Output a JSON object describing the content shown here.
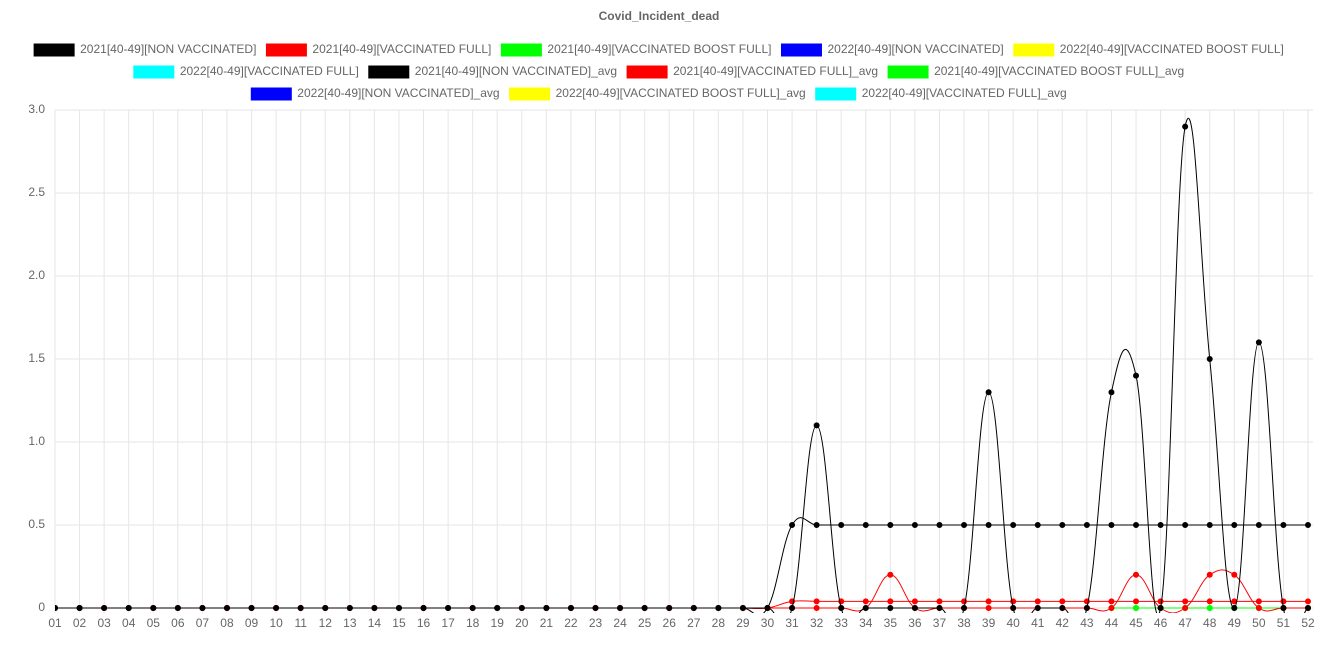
{
  "chart_data": {
    "type": "line",
    "title": "Covid_Incident_dead",
    "categories": [
      "01",
      "02",
      "03",
      "04",
      "05",
      "06",
      "07",
      "08",
      "09",
      "10",
      "11",
      "12",
      "13",
      "14",
      "15",
      "16",
      "17",
      "18",
      "19",
      "20",
      "21",
      "22",
      "23",
      "24",
      "25",
      "26",
      "27",
      "28",
      "29",
      "30",
      "31",
      "32",
      "33",
      "34",
      "35",
      "36",
      "37",
      "38",
      "39",
      "40",
      "41",
      "42",
      "43",
      "44",
      "45",
      "46",
      "47",
      "48",
      "49",
      "50",
      "51",
      "52"
    ],
    "ylim": [
      0,
      3
    ],
    "yticks": [
      0,
      0.5,
      {
        "value": 1,
        "label": "1.0"
      },
      {
        "value": 1.5,
        "label": "1.5"
      },
      {
        "value": 2,
        "label": "2.0"
      },
      {
        "value": 2.5,
        "label": "2.5"
      },
      {
        "value": 3,
        "label": "3.0"
      }
    ],
    "grid": true,
    "legend": "top",
    "series": [
      {
        "name": "2021[40-49][NON VACCINATED]",
        "color": "#000000",
        "values": [
          0,
          0,
          0,
          0,
          0,
          0,
          0,
          0,
          0,
          0,
          0,
          0,
          0,
          0,
          0,
          0,
          0,
          0,
          0,
          0,
          0,
          0,
          0,
          0,
          0,
          0,
          0,
          0,
          0,
          0,
          0,
          1.1,
          0,
          0,
          0,
          0,
          0,
          0,
          1.3,
          0,
          0,
          0,
          0,
          1.3,
          1.4,
          0,
          2.9,
          1.5,
          0,
          1.6,
          0,
          0
        ]
      },
      {
        "name": "2021[40-49][VACCINATED FULL]",
        "color": "#ff0000",
        "values": [
          0,
          0,
          0,
          0,
          0,
          0,
          0,
          0,
          0,
          0,
          0,
          0,
          0,
          0,
          0,
          0,
          0,
          0,
          0,
          0,
          0,
          0,
          0,
          0,
          0,
          0,
          0,
          0,
          0,
          0,
          0,
          0,
          0,
          0,
          0.2,
          0,
          0,
          0,
          0,
          0,
          0,
          0,
          0,
          0,
          0.2,
          0,
          0,
          0.2,
          0.2,
          0,
          0,
          0
        ]
      },
      {
        "name": "2021[40-49][VACCINATED BOOST FULL]",
        "color": "#00ff00",
        "values": [
          null,
          null,
          null,
          null,
          null,
          null,
          null,
          null,
          null,
          null,
          null,
          null,
          null,
          null,
          null,
          null,
          null,
          null,
          null,
          null,
          null,
          null,
          null,
          null,
          null,
          null,
          null,
          null,
          null,
          null,
          null,
          null,
          null,
          null,
          null,
          null,
          null,
          null,
          null,
          null,
          null,
          null,
          null,
          0,
          0,
          0,
          0,
          0,
          0,
          0,
          0,
          0
        ]
      },
      {
        "name": "2022[40-49][NON VACCINATED]",
        "color": "#0000ff",
        "values": [
          null,
          null,
          null,
          null,
          null,
          null,
          null,
          null,
          null,
          null,
          null,
          null,
          null,
          null,
          null,
          null,
          null,
          null,
          null,
          null,
          null,
          null,
          null,
          null,
          null,
          null,
          null,
          null,
          null,
          null,
          null,
          null,
          null,
          null,
          null,
          null,
          null,
          null,
          null,
          null,
          null,
          null,
          null,
          null,
          null,
          null,
          null,
          null,
          null,
          null,
          null,
          null
        ]
      },
      {
        "name": "2022[40-49][VACCINATED BOOST FULL]",
        "color": "#ffff00",
        "values": [
          null,
          null,
          null,
          null,
          null,
          null,
          null,
          null,
          null,
          null,
          null,
          null,
          null,
          null,
          null,
          null,
          null,
          null,
          null,
          null,
          null,
          null,
          null,
          null,
          null,
          null,
          null,
          null,
          null,
          null,
          null,
          null,
          null,
          null,
          null,
          null,
          null,
          null,
          null,
          null,
          null,
          null,
          null,
          null,
          null,
          null,
          null,
          null,
          null,
          null,
          null,
          null
        ]
      },
      {
        "name": "2022[40-49][VACCINATED FULL]",
        "color": "#00ffff",
        "values": [
          null,
          null,
          null,
          null,
          null,
          null,
          null,
          null,
          null,
          null,
          null,
          null,
          null,
          null,
          null,
          null,
          null,
          null,
          null,
          null,
          null,
          null,
          null,
          null,
          null,
          null,
          null,
          null,
          null,
          null,
          null,
          null,
          null,
          null,
          null,
          null,
          null,
          null,
          null,
          null,
          null,
          null,
          null,
          null,
          null,
          null,
          null,
          null,
          null,
          null,
          null,
          null
        ]
      },
      {
        "name": "2021[40-49][NON VACCINATED]_avg",
        "color": "#000000",
        "values": [
          0,
          0,
          0,
          0,
          0,
          0,
          0,
          0,
          0,
          0,
          0,
          0,
          0,
          0,
          0,
          0,
          0,
          0,
          0,
          0,
          0,
          0,
          0,
          0,
          0,
          0,
          0,
          0,
          0,
          0,
          0.5,
          0.5,
          0.5,
          0.5,
          0.5,
          0.5,
          0.5,
          0.5,
          0.5,
          0.5,
          0.5,
          0.5,
          0.5,
          0.5,
          0.5,
          0.5,
          0.5,
          0.5,
          0.5,
          0.5,
          0.5,
          0.5
        ]
      },
      {
        "name": "2021[40-49][VACCINATED FULL]_avg",
        "color": "#ff0000",
        "values": [
          0,
          0,
          0,
          0,
          0,
          0,
          0,
          0,
          0,
          0,
          0,
          0,
          0,
          0,
          0,
          0,
          0,
          0,
          0,
          0,
          0,
          0,
          0,
          0,
          0,
          0,
          0,
          0,
          0,
          0,
          0.04,
          0.04,
          0.04,
          0.04,
          0.04,
          0.04,
          0.04,
          0.04,
          0.04,
          0.04,
          0.04,
          0.04,
          0.04,
          0.04,
          0.04,
          0.04,
          0.04,
          0.04,
          0.04,
          0.04,
          0.04,
          0.04
        ]
      },
      {
        "name": "2021[40-49][VACCINATED BOOST FULL]_avg",
        "color": "#00ff00",
        "values": [
          null,
          null,
          null,
          null,
          null,
          null,
          null,
          null,
          null,
          null,
          null,
          null,
          null,
          null,
          null,
          null,
          null,
          null,
          null,
          null,
          null,
          null,
          null,
          null,
          null,
          null,
          null,
          null,
          null,
          null,
          null,
          null,
          null,
          null,
          null,
          null,
          null,
          null,
          null,
          null,
          null,
          null,
          null,
          0,
          0,
          0,
          0,
          0,
          0,
          0,
          0,
          0
        ]
      },
      {
        "name": "2022[40-49][NON VACCINATED]_avg",
        "color": "#0000ff",
        "values": [
          null,
          null,
          null,
          null,
          null,
          null,
          null,
          null,
          null,
          null,
          null,
          null,
          null,
          null,
          null,
          null,
          null,
          null,
          null,
          null,
          null,
          null,
          null,
          null,
          null,
          null,
          null,
          null,
          null,
          null,
          null,
          null,
          null,
          null,
          null,
          null,
          null,
          null,
          null,
          null,
          null,
          null,
          null,
          null,
          null,
          null,
          null,
          null,
          null,
          null,
          null,
          null
        ]
      },
      {
        "name": "2022[40-49][VACCINATED BOOST FULL]_avg",
        "color": "#ffff00",
        "values": [
          null,
          null,
          null,
          null,
          null,
          null,
          null,
          null,
          null,
          null,
          null,
          null,
          null,
          null,
          null,
          null,
          null,
          null,
          null,
          null,
          null,
          null,
          null,
          null,
          null,
          null,
          null,
          null,
          null,
          null,
          null,
          null,
          null,
          null,
          null,
          null,
          null,
          null,
          null,
          null,
          null,
          null,
          null,
          null,
          null,
          null,
          null,
          null,
          null,
          null,
          null,
          null
        ]
      },
      {
        "name": "2022[40-49][VACCINATED FULL]_avg",
        "color": "#00ffff",
        "values": [
          null,
          null,
          null,
          null,
          null,
          null,
          null,
          null,
          null,
          null,
          null,
          null,
          null,
          null,
          null,
          null,
          null,
          null,
          null,
          null,
          null,
          null,
          null,
          null,
          null,
          null,
          null,
          null,
          null,
          null,
          null,
          null,
          null,
          null,
          null,
          null,
          null,
          null,
          null,
          null,
          null,
          null,
          null,
          null,
          null,
          null,
          null,
          null,
          null,
          null,
          null,
          null
        ]
      }
    ]
  }
}
